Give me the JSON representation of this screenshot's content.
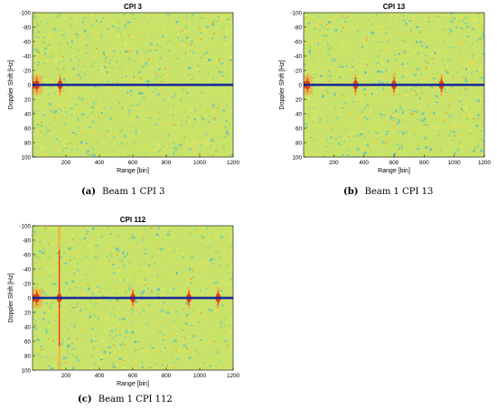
{
  "chart_data": [
    {
      "type": "heatmap",
      "title": "CPI 3",
      "xlabel": "Range [bin]",
      "ylabel": "Doppler Shift [Hz]",
      "xlim": [
        0,
        1200
      ],
      "ylim": [
        -100,
        100
      ],
      "y_inverted": true,
      "x_ticks": [
        200,
        400,
        600,
        800,
        1000,
        1200
      ],
      "y_ticks": [
        -100,
        -80,
        -60,
        -40,
        -20,
        0,
        20,
        40,
        60,
        80,
        100
      ],
      "zero_doppler_clutter_ridge_hz": 0,
      "strong_targets": [
        {
          "range_bin": 25,
          "doppler_hz": 0
        },
        {
          "range_bin": 165,
          "doppler_hz": 0
        }
      ],
      "caption_label": "(a)",
      "caption_text": "Beam 1 CPI 3"
    },
    {
      "type": "heatmap",
      "title": "CPI 13",
      "xlabel": "Range [bin]",
      "ylabel": "Doppler Shift [Hz]",
      "xlim": [
        0,
        1200
      ],
      "ylim": [
        -100,
        100
      ],
      "y_inverted": true,
      "x_ticks": [
        200,
        400,
        600,
        800,
        1000,
        1200
      ],
      "y_ticks": [
        -100,
        -80,
        -60,
        -40,
        -20,
        0,
        20,
        40,
        60,
        80,
        100
      ],
      "zero_doppler_clutter_ridge_hz": 0,
      "strong_targets": [
        {
          "range_bin": 25,
          "doppler_hz": 0
        },
        {
          "range_bin": 345,
          "doppler_hz": 0
        },
        {
          "range_bin": 600,
          "doppler_hz": 0
        },
        {
          "range_bin": 915,
          "doppler_hz": 0
        }
      ],
      "caption_label": "(b)",
      "caption_text": "Beam 1 CPI 13"
    },
    {
      "type": "heatmap",
      "title": "CPI 112",
      "xlabel": "Range [bin]",
      "ylabel": "Doppler Shift [Hz]",
      "xlim": [
        0,
        1200
      ],
      "ylim": [
        -100,
        100
      ],
      "y_inverted": true,
      "x_ticks": [
        200,
        400,
        600,
        800,
        1000,
        1200
      ],
      "y_ticks": [
        -100,
        -80,
        -60,
        -40,
        -20,
        0,
        20,
        40,
        60,
        80,
        100
      ],
      "zero_doppler_clutter_ridge_hz": 0,
      "strong_targets": [
        {
          "range_bin": 25,
          "doppler_hz": 0
        },
        {
          "range_bin": 160,
          "doppler_hz": 0
        },
        {
          "range_bin": 600,
          "doppler_hz": 0
        },
        {
          "range_bin": 935,
          "doppler_hz": 0
        },
        {
          "range_bin": 1110,
          "doppler_hz": 0
        }
      ],
      "caption_label": "(c)",
      "caption_text": "Beam 1 CPI 112"
    }
  ],
  "colors": {
    "background_field": "#c9e36a",
    "ridge": "#1a2a9a",
    "hot": "#e23a1a",
    "cool": "#2fb9c9"
  }
}
